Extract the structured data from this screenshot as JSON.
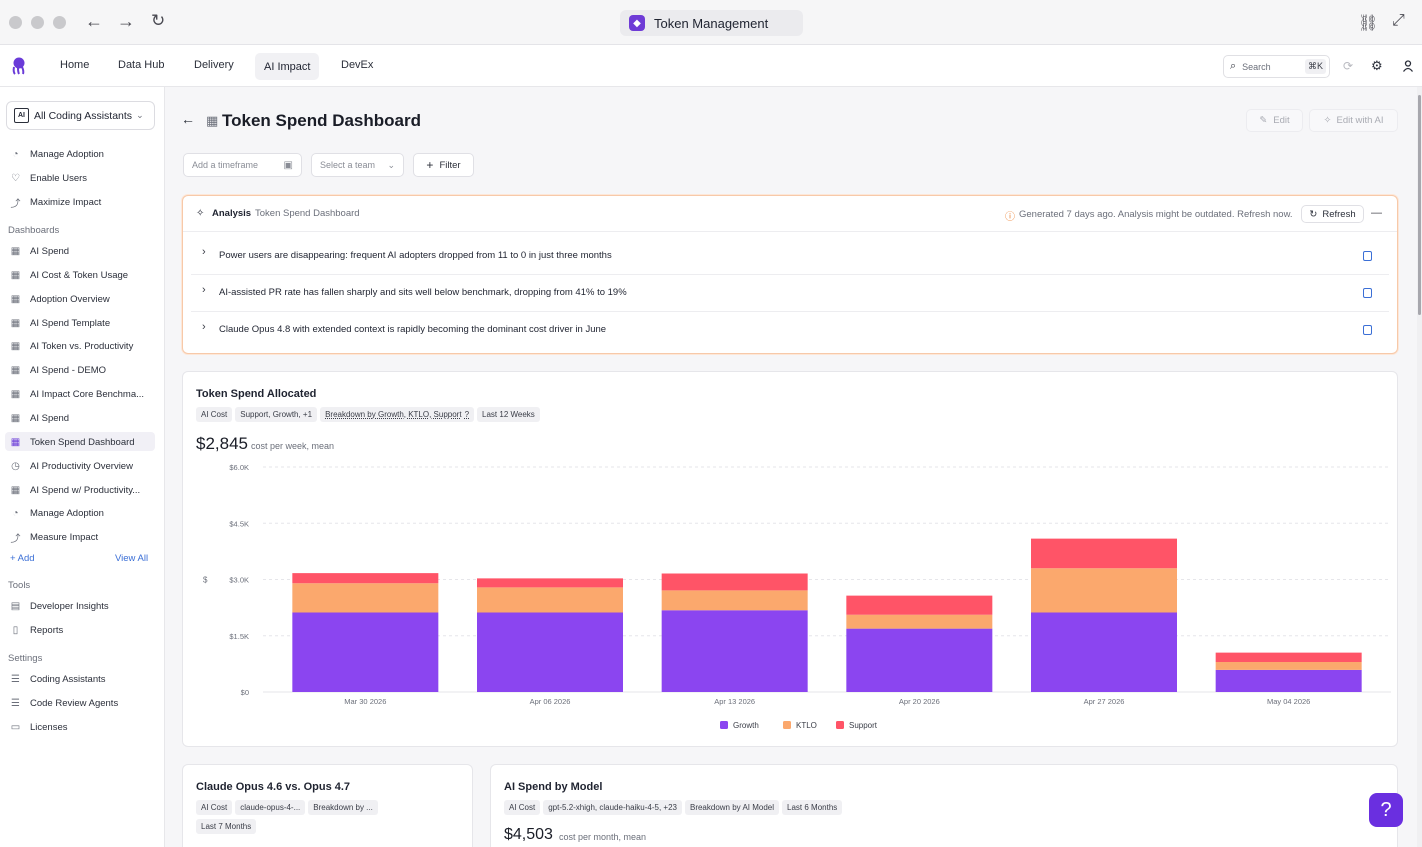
{
  "window": {
    "title": "Token Management"
  },
  "nav": {
    "home": "Home",
    "data_hub": "Data Hub",
    "delivery": "Delivery",
    "ai_impact": "AI Impact",
    "devex": "DevEx"
  },
  "search": {
    "placeholder": "Search",
    "shortcut": "⌘K"
  },
  "sidebar": {
    "selector": "All Coding Assistants",
    "top_items": [
      {
        "label": "Manage Adoption",
        "icon": "pie-icon"
      },
      {
        "label": "Enable Users",
        "icon": "heart-icon"
      },
      {
        "label": "Maximize Impact",
        "icon": "trend-icon"
      }
    ],
    "dashboards_heading": "Dashboards",
    "dashboards": [
      "AI Spend",
      "AI Cost & Token Usage",
      "Adoption Overview",
      "AI Spend Template",
      "AI Token vs. Productivity",
      "AI Spend - DEMO",
      "AI Impact Core Benchma...",
      "AI Spend",
      "Token Spend Dashboard",
      "AI Productivity Overview",
      "AI Spend w/ Productivity...",
      "Manage Adoption",
      "Measure Impact"
    ],
    "add_label": "+ Add",
    "view_all_label": "View All",
    "tools_heading": "Tools",
    "tools": [
      "Developer Insights",
      "Reports"
    ],
    "settings_heading": "Settings",
    "settings": [
      "Coding Assistants",
      "Code Review Agents",
      "Licenses"
    ]
  },
  "page": {
    "title": "Token Spend Dashboard",
    "edit_label": "Edit",
    "edit_ai_label": "Edit with AI",
    "timeframe_placeholder": "Add a timeframe",
    "team_placeholder": "Select a team",
    "filter_label": "Filter"
  },
  "analysis": {
    "label": "Analysis",
    "subtitle": "Token Spend Dashboard",
    "status": "Generated 7 days ago. Analysis might be outdated. Refresh now.",
    "refresh_label": "Refresh",
    "insights": [
      "Power users are disappearing: frequent AI adopters dropped from 11 to 0 in just three months",
      "AI-assisted PR rate has fallen sharply and sits well below benchmark, dropping from 41% to 19%",
      "Claude Opus 4.8 with extended context is rapidly becoming the dominant cost driver in June"
    ]
  },
  "token_card": {
    "title": "Token Spend Allocated",
    "chips": [
      "AI Cost",
      "Support, Growth, +1",
      "Breakdown by Growth, KTLO, Support",
      "Last 12 Weeks"
    ],
    "value": "$2,845",
    "value_caption": "cost per week, mean"
  },
  "chart_data": {
    "type": "bar",
    "stacked": true,
    "categories": [
      "Mar 30 2026",
      "Apr 06 2026",
      "Apr 13 2026",
      "Apr 20 2026",
      "Apr 27 2026",
      "May 04 2026"
    ],
    "series": [
      {
        "name": "Growth",
        "color": "#8b45f0",
        "values": [
          2120,
          2120,
          2180,
          1690,
          2120,
          590
        ]
      },
      {
        "name": "KTLO",
        "color": "#fba86d",
        "values": [
          780,
          670,
          530,
          370,
          1180,
          210
        ]
      },
      {
        "name": "Support",
        "color": "#ff5467",
        "values": [
          270,
          240,
          450,
          510,
          790,
          250
        ]
      }
    ],
    "y_ticks": [
      "$0",
      "$1.5K",
      "$3.0K",
      "$4.5K",
      "$6.0K"
    ],
    "ylim": [
      0,
      6000
    ],
    "ylabel": "$",
    "grid": true,
    "legend": "bottom"
  },
  "opus_card": {
    "title": "Claude Opus 4.6 vs. Opus 4.7",
    "chips": [
      "AI Cost",
      "claude-opus-4-...",
      "Breakdown by ..."
    ],
    "chips2": [
      "Last 7 Months"
    ]
  },
  "model_card": {
    "title": "AI Spend by Model",
    "chips": [
      "AI Cost",
      "gpt-5.2-xhigh, claude-haiku-4-5, +23",
      "Breakdown by AI Model",
      "Last 6 Months"
    ],
    "value": "$4,503",
    "value_caption": "cost per month, mean"
  },
  "help": {
    "label": "?"
  }
}
